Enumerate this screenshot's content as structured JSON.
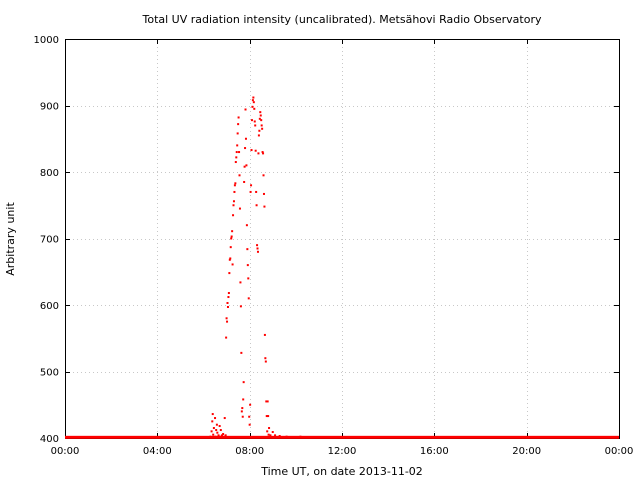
{
  "chart_data": {
    "type": "scatter",
    "title": "Total UV radiation intensity (uncalibrated). Metsähovi Radio Observatory",
    "xlabel": "Time UT, on date 2013-11-02",
    "ylabel": "Arbitrary unit",
    "xlim_hours": [
      0,
      24
    ],
    "ylim": [
      400,
      1000
    ],
    "x_ticks": [
      {
        "label": "00:00",
        "hour": 0
      },
      {
        "label": "04:00",
        "hour": 4
      },
      {
        "label": "08:00",
        "hour": 8
      },
      {
        "label": "12:00",
        "hour": 12
      },
      {
        "label": "16:00",
        "hour": 16
      },
      {
        "label": "20:00",
        "hour": 20
      },
      {
        "label": "00:00",
        "hour": 24
      }
    ],
    "y_ticks": [
      400,
      500,
      600,
      700,
      800,
      900,
      1000
    ],
    "grid": true,
    "marker_color": "#ff0000",
    "baseline": {
      "value": 401,
      "x_from": 0,
      "x_to": 24
    },
    "points": [
      [
        6.3,
        402
      ],
      [
        6.35,
        410
      ],
      [
        6.38,
        425
      ],
      [
        6.4,
        436
      ],
      [
        6.42,
        405
      ],
      [
        6.45,
        415
      ],
      [
        6.5,
        430
      ],
      [
        6.52,
        402
      ],
      [
        6.55,
        412
      ],
      [
        6.58,
        420
      ],
      [
        6.6,
        408
      ],
      [
        6.65,
        404
      ],
      [
        6.7,
        418
      ],
      [
        6.72,
        402
      ],
      [
        6.75,
        412
      ],
      [
        6.8,
        404
      ],
      [
        6.85,
        406
      ],
      [
        6.9,
        402
      ],
      [
        6.92,
        430
      ],
      [
        6.96,
        404
      ],
      [
        6.98,
        551
      ],
      [
        7.0,
        580
      ],
      [
        7.02,
        575
      ],
      [
        7.04,
        603
      ],
      [
        7.06,
        597
      ],
      [
        7.08,
        612
      ],
      [
        7.1,
        618
      ],
      [
        7.12,
        648
      ],
      [
        7.14,
        668
      ],
      [
        7.16,
        670
      ],
      [
        7.18,
        687
      ],
      [
        7.2,
        700
      ],
      [
        7.22,
        703
      ],
      [
        7.24,
        711
      ],
      [
        7.26,
        661
      ],
      [
        7.28,
        735
      ],
      [
        7.3,
        750
      ],
      [
        7.32,
        756
      ],
      [
        7.34,
        770
      ],
      [
        7.36,
        780
      ],
      [
        7.38,
        783
      ],
      [
        7.4,
        815
      ],
      [
        7.42,
        822
      ],
      [
        7.44,
        830
      ],
      [
        7.46,
        840
      ],
      [
        7.48,
        858
      ],
      [
        7.5,
        872
      ],
      [
        7.52,
        882
      ],
      [
        7.54,
        830
      ],
      [
        7.56,
        795
      ],
      [
        7.58,
        745
      ],
      [
        7.6,
        634
      ],
      [
        7.62,
        598
      ],
      [
        7.64,
        528
      ],
      [
        7.66,
        440
      ],
      [
        7.68,
        445
      ],
      [
        7.7,
        432
      ],
      [
        7.72,
        458
      ],
      [
        7.74,
        484
      ],
      [
        7.76,
        785
      ],
      [
        7.78,
        808
      ],
      [
        7.8,
        836
      ],
      [
        7.82,
        894
      ],
      [
        7.84,
        850
      ],
      [
        7.86,
        810
      ],
      [
        7.88,
        720
      ],
      [
        7.9,
        684
      ],
      [
        7.92,
        660
      ],
      [
        7.94,
        640
      ],
      [
        7.96,
        610
      ],
      [
        7.98,
        432
      ],
      [
        8.0,
        420
      ],
      [
        8.02,
        450
      ],
      [
        8.04,
        770
      ],
      [
        8.06,
        780
      ],
      [
        8.08,
        833
      ],
      [
        8.1,
        878
      ],
      [
        8.12,
        898
      ],
      [
        8.14,
        908
      ],
      [
        8.16,
        912
      ],
      [
        8.18,
        905
      ],
      [
        8.2,
        895
      ],
      [
        8.22,
        876
      ],
      [
        8.24,
        870
      ],
      [
        8.26,
        832
      ],
      [
        8.28,
        770
      ],
      [
        8.3,
        750
      ],
      [
        8.32,
        690
      ],
      [
        8.34,
        685
      ],
      [
        8.36,
        680
      ],
      [
        8.38,
        828
      ],
      [
        8.4,
        855
      ],
      [
        8.42,
        862
      ],
      [
        8.44,
        880
      ],
      [
        8.46,
        890
      ],
      [
        8.48,
        885
      ],
      [
        8.5,
        878
      ],
      [
        8.52,
        870
      ],
      [
        8.54,
        865
      ],
      [
        8.56,
        830
      ],
      [
        8.58,
        828
      ],
      [
        8.6,
        795
      ],
      [
        8.62,
        767
      ],
      [
        8.64,
        748
      ],
      [
        8.66,
        555
      ],
      [
        8.68,
        520
      ],
      [
        8.7,
        515
      ],
      [
        8.72,
        455
      ],
      [
        8.74,
        433
      ],
      [
        8.76,
        410
      ],
      [
        8.78,
        455
      ],
      [
        8.8,
        433
      ],
      [
        8.82,
        405
      ],
      [
        8.84,
        415
      ],
      [
        8.9,
        404
      ],
      [
        9.0,
        409
      ],
      [
        9.1,
        404
      ],
      [
        9.3,
        403
      ],
      [
        9.6,
        402
      ],
      [
        10.2,
        402
      ]
    ]
  }
}
